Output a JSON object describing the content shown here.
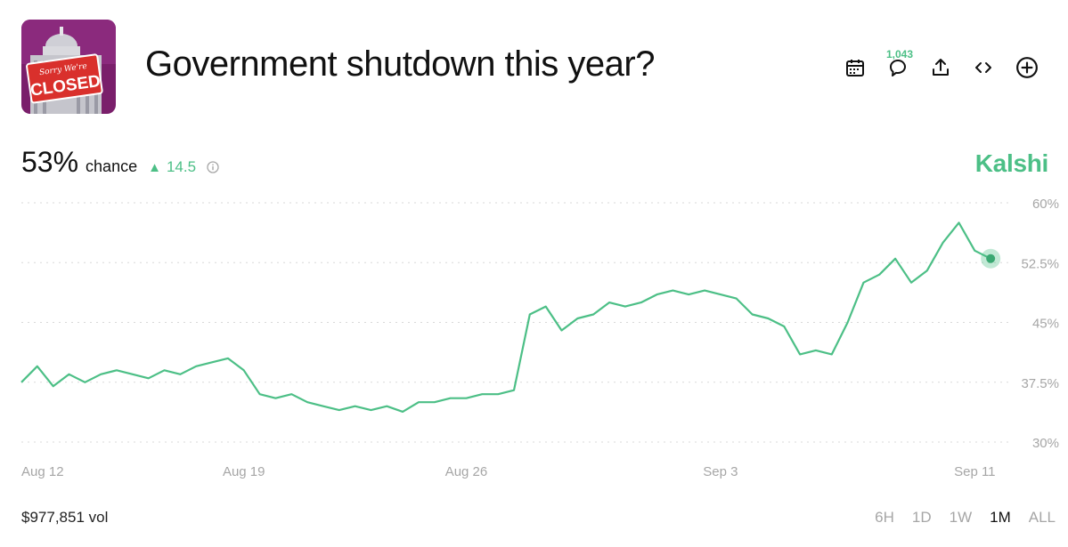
{
  "market": {
    "title": "Government shutdown this year?",
    "thumbnail": {
      "sign_top": "Sorry We're",
      "sign_main": "CLOSED"
    }
  },
  "toolbar": {
    "icons": [
      "calendar-icon",
      "comment-icon",
      "share-icon",
      "embed-icon",
      "add-icon"
    ],
    "comment_count": "1,043"
  },
  "summary": {
    "probability": "53%",
    "probability_label": "chance",
    "delta": "14.5",
    "delta_direction": "up",
    "brand": "Kalshi"
  },
  "colors": {
    "accent": "#4cbf86",
    "gridline": "#d9d9d9",
    "axis_text": "#a6a6a6"
  },
  "chart_data": {
    "type": "line",
    "ylim": [
      30,
      60
    ],
    "y_ticks": [
      "30%",
      "37.5%",
      "45%",
      "52.5%",
      "60%"
    ],
    "y_tick_values": [
      30,
      37.5,
      45,
      52.5,
      60
    ],
    "x_tick_labels": [
      "Aug 12",
      "Aug 19",
      "Aug 26",
      "Sep 3",
      "Sep 11"
    ],
    "x_range": [
      "Aug 12",
      "Sep 12"
    ],
    "grid": true,
    "series": [
      {
        "x": [
          "Aug 12",
          "Aug 12",
          "Aug 13",
          "Aug 13",
          "Aug 14",
          "Aug 14",
          "Aug 15",
          "Aug 15",
          "Aug 16",
          "Aug 16",
          "Aug 17",
          "Aug 17",
          "Aug 18",
          "Aug 18",
          "Aug 19",
          "Aug 19",
          "Aug 20",
          "Aug 20",
          "Aug 21",
          "Aug 21",
          "Aug 22",
          "Aug 22",
          "Aug 23",
          "Aug 23",
          "Aug 24",
          "Aug 24",
          "Aug 25",
          "Aug 25",
          "Aug 26",
          "Aug 26",
          "Aug 27",
          "Aug 27",
          "Aug 28",
          "Aug 28",
          "Aug 29",
          "Aug 29",
          "Aug 30",
          "Aug 30",
          "Aug 31",
          "Aug 31",
          "Sep 1",
          "Sep 1",
          "Sep 2",
          "Sep 2",
          "Sep 3",
          "Sep 3",
          "Sep 4",
          "Sep 4",
          "Sep 5",
          "Sep 5",
          "Sep 6",
          "Sep 6",
          "Sep 7",
          "Sep 7",
          "Sep 8",
          "Sep 8",
          "Sep 9",
          "Sep 9",
          "Sep 10",
          "Sep 10",
          "Sep 11",
          "Sep 11"
        ],
        "values": [
          37.5,
          39.5,
          37,
          38.5,
          37.5,
          38.5,
          39,
          38.5,
          38,
          39,
          38.5,
          39.5,
          40,
          40.5,
          39,
          36,
          35.5,
          36,
          35,
          34.5,
          34,
          34.5,
          34,
          34.5,
          33.8,
          35,
          35,
          35.5,
          35.5,
          36,
          36,
          36.5,
          46,
          47,
          44,
          45.5,
          46,
          47.5,
          47,
          47.5,
          48.5,
          49,
          48.5,
          49,
          48.5,
          48,
          46,
          45.5,
          44.5,
          41,
          41.5,
          41,
          45,
          50,
          51,
          53,
          50,
          51.5,
          55,
          57.5,
          54,
          53
        ]
      }
    ],
    "current_marker_value": 53
  },
  "footer": {
    "volume": "$977,851 vol",
    "ranges": [
      "6H",
      "1D",
      "1W",
      "1M",
      "ALL"
    ],
    "active_range": "1M"
  }
}
